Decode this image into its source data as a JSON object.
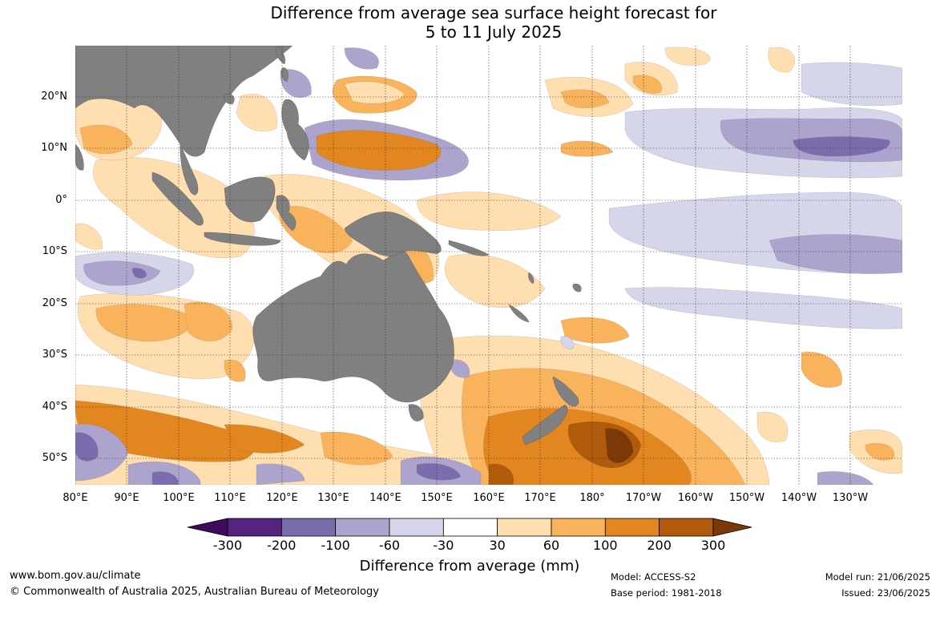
{
  "title_line1": "Difference from average sea surface height forecast for",
  "title_line2": "5 to 11 July 2025",
  "lat_labels": [
    "20°N",
    "10°N",
    "0°",
    "10°S",
    "20°S",
    "30°S",
    "40°S",
    "50°S"
  ],
  "lon_labels": [
    "80°E",
    "90°E",
    "100°E",
    "110°E",
    "120°E",
    "130°E",
    "140°E",
    "150°E",
    "160°E",
    "170°E",
    "180°",
    "170°W",
    "160°W",
    "150°W",
    "140°W",
    "130°W"
  ],
  "colorbar": {
    "labels": [
      "-300",
      "-200",
      "-100",
      "-60",
      "-30",
      "30",
      "60",
      "100",
      "200",
      "300"
    ],
    "colors": [
      "#3e0b5a",
      "#53237e",
      "#7b6dad",
      "#aca4cd",
      "#d6d6ea",
      "#ffffff",
      "#ffdeb0",
      "#f9b35d",
      "#e2861f",
      "#b05a0c",
      "#7a3906"
    ],
    "title": "Difference from average (mm)"
  },
  "colors": {
    "land": "#808080",
    "ocean": "#ffffff"
  },
  "footer": {
    "website": "www.bom.gov.au/climate",
    "copyright": "© Commonwealth of Australia 2025, Australian Bureau of Meteorology",
    "model": "Model: ACCESS-S2",
    "base_period": "Base period: 1981-2018",
    "model_run": "Model run: 21/06/2025",
    "issued": "Issued: 23/06/2025"
  }
}
